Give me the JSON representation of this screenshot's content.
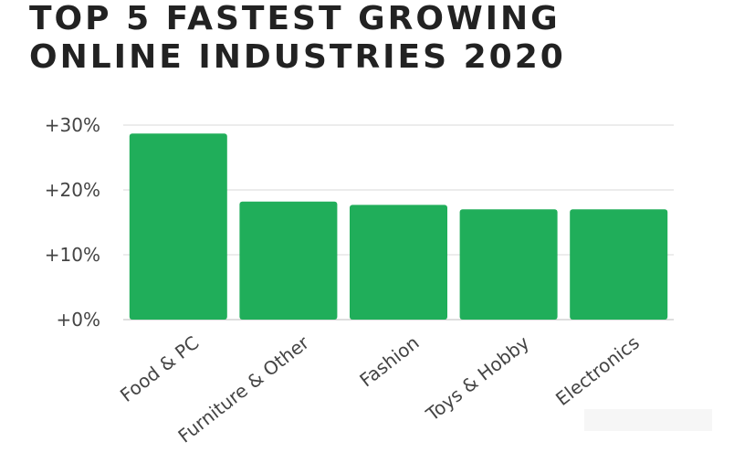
{
  "title_lines": [
    "TOP 5 FASTEST GROWING",
    "ONLINE INDUSTRIES 2020"
  ],
  "colors": {
    "bar": "#20ae5a",
    "grid": "#d9d9d9",
    "text": "#444444",
    "title": "#222222"
  },
  "chart_data": {
    "type": "bar",
    "title": "TOP 5 FASTEST GROWING ONLINE INDUSTRIES 2020",
    "categories": [
      "Food & PC",
      "Furniture & Other",
      "Fashion",
      "Toys & Hobby",
      "Electronics"
    ],
    "values": [
      28.7,
      18.2,
      17.7,
      17.0,
      17.0
    ],
    "ylim": [
      0,
      30
    ],
    "yticks": [
      0,
      10,
      20,
      30
    ],
    "ytick_labels": [
      "+0%",
      "+10%",
      "+20%",
      "+30%"
    ],
    "xlabel": "",
    "ylabel": "",
    "grid": true,
    "legend": "none"
  }
}
